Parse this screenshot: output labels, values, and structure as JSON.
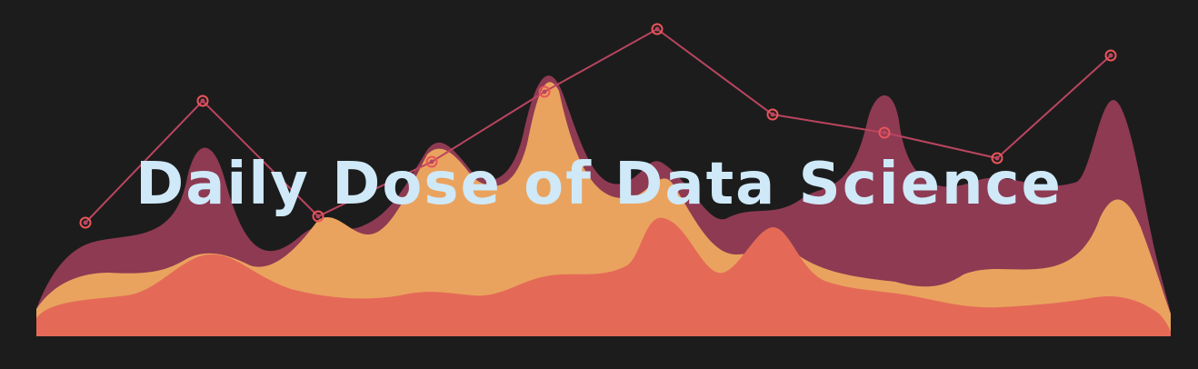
{
  "title": "Daily Dose of Data Science",
  "colors": {
    "background": "#1c1c1c",
    "back_layer": "#8e3a53",
    "middle_layer": "#eaa35e",
    "front_layer": "#e46a57",
    "line": "#b94560",
    "marker": "#e8555a",
    "title_text": "#cfe9f8"
  }
}
